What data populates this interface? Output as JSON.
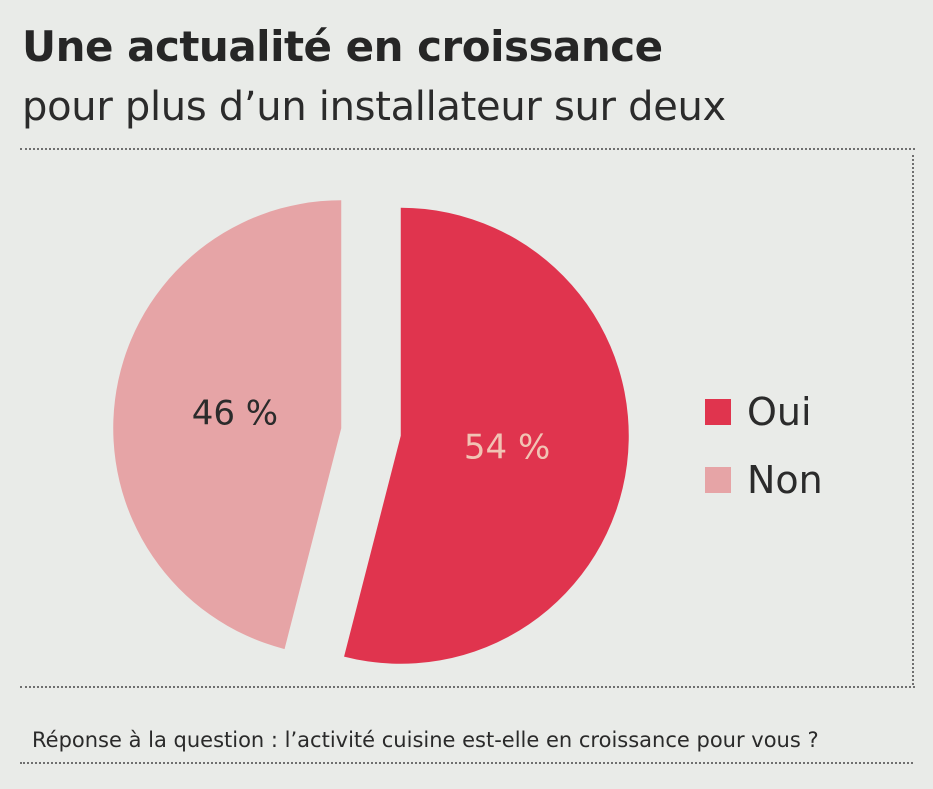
{
  "header": {
    "title": "Une actualité en croissance",
    "subtitle": "pour plus d’un installateur sur deux"
  },
  "footer": {
    "question": "Réponse à la question : l’activité cuisine est-elle en croissance pour vous ?"
  },
  "chart_data": {
    "type": "pie",
    "title": "Une actualité en croissance",
    "subtitle": "pour plus d’un installateur sur deux",
    "legend_position": "right",
    "slices": [
      {
        "label": "Oui",
        "value": 54,
        "display": "54 %",
        "color": "#e0344e"
      },
      {
        "label": "Non",
        "value": 46,
        "display": "46 %",
        "color": "#e6a4a6"
      }
    ]
  }
}
